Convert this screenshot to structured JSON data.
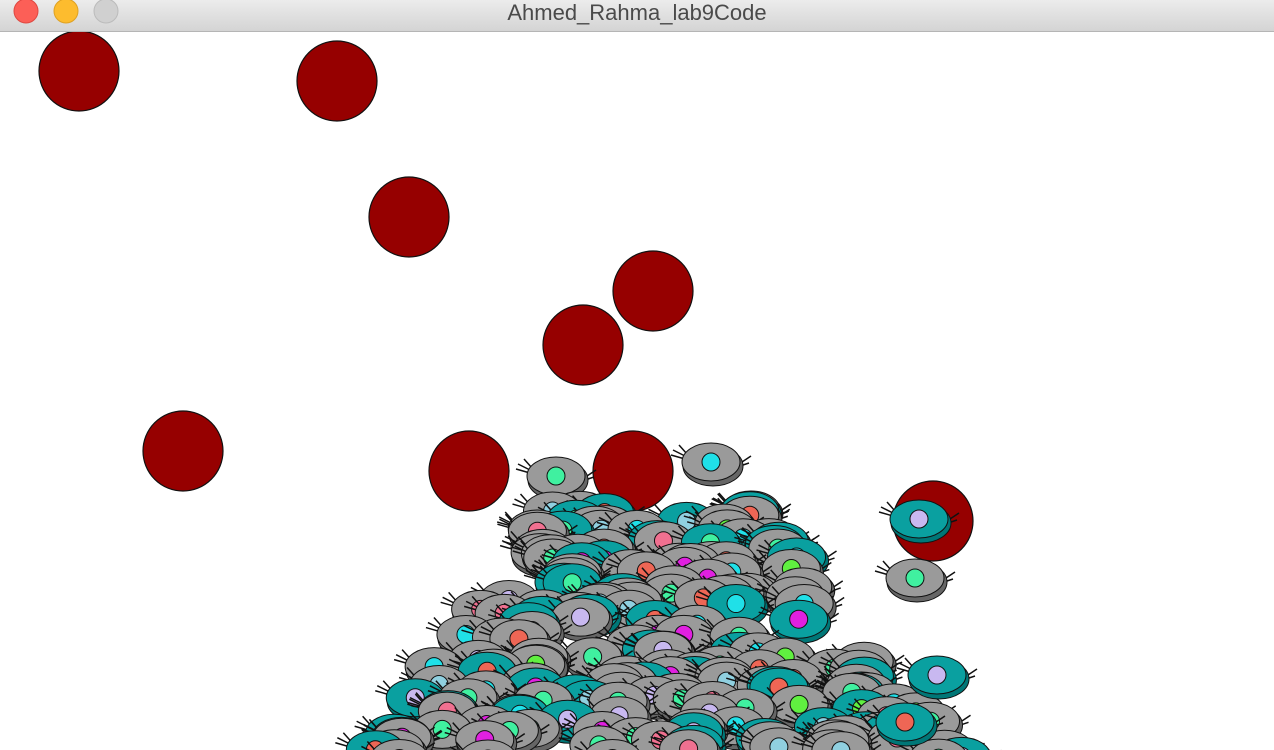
{
  "window": {
    "title": "Ahmed_Rahma_lab9Code"
  }
}
